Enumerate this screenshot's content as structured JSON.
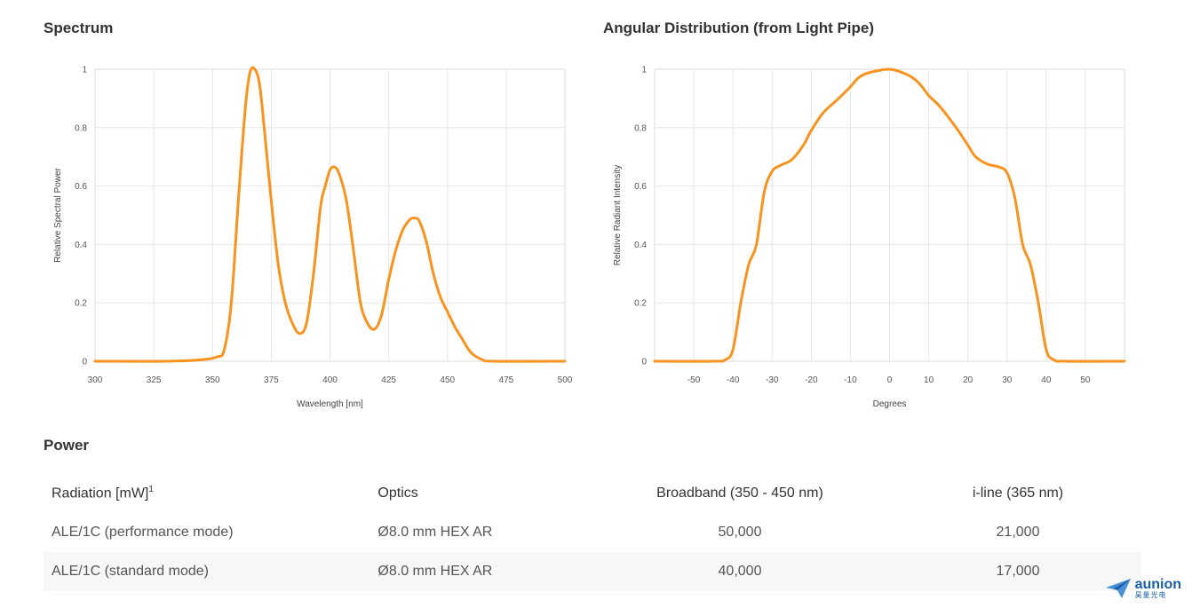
{
  "sections": {
    "spectrum_title": "Spectrum",
    "angular_title": "Angular Distribution (from Light Pipe)",
    "power_title": "Power"
  },
  "chart_data": [
    {
      "type": "line",
      "xlabel": "Wavelength [nm]",
      "ylabel": "Relative Spectral Power",
      "xlim": [
        300,
        500
      ],
      "ylim": [
        0,
        1
      ],
      "x_ticks": [
        300,
        325,
        350,
        375,
        400,
        425,
        450,
        475,
        500
      ],
      "y_ticks": [
        0,
        0.2,
        0.4,
        0.6,
        0.8,
        1
      ],
      "y_tick_labels": [
        "0",
        "0.2",
        "0.4",
        "0.6",
        "0.8",
        "1"
      ],
      "grid": true,
      "color": "#f7931e",
      "series": [
        {
          "x": [
            300,
            330,
            345,
            352,
            355,
            358,
            361,
            364,
            366,
            368,
            370,
            372,
            375,
            378,
            381,
            384,
            387,
            390,
            393,
            396,
            398,
            400,
            402,
            404,
            407,
            410,
            413,
            416,
            419,
            422,
            425,
            428,
            431,
            434,
            436,
            438,
            441,
            444,
            447,
            450,
            453,
            456,
            460,
            465,
            470,
            500
          ],
          "y": [
            0,
            0,
            0.005,
            0.015,
            0.04,
            0.2,
            0.55,
            0.87,
            0.99,
            1.0,
            0.95,
            0.8,
            0.55,
            0.33,
            0.2,
            0.13,
            0.095,
            0.13,
            0.3,
            0.53,
            0.6,
            0.655,
            0.665,
            0.64,
            0.55,
            0.38,
            0.2,
            0.13,
            0.11,
            0.16,
            0.28,
            0.38,
            0.45,
            0.485,
            0.49,
            0.48,
            0.41,
            0.3,
            0.22,
            0.17,
            0.12,
            0.08,
            0.03,
            0.005,
            0,
            0
          ]
        }
      ]
    },
    {
      "type": "line",
      "xlabel": "Degrees",
      "ylabel": "Relative Radiant Intensity",
      "xlim": [
        -60,
        60
      ],
      "ylim": [
        0,
        1
      ],
      "x_ticks": [
        -50,
        -40,
        -30,
        -20,
        -10,
        0,
        10,
        20,
        30,
        40,
        50
      ],
      "y_ticks": [
        0,
        0.2,
        0.4,
        0.6,
        0.8,
        1
      ],
      "y_tick_labels": [
        "0",
        "0.2",
        "0.4",
        "0.6",
        "0.8",
        "1"
      ],
      "grid": true,
      "color": "#f7931e",
      "series": [
        {
          "x": [
            -60,
            -45,
            -42,
            -40,
            -38,
            -36,
            -34,
            -32,
            -30,
            -28,
            -25,
            -22,
            -20,
            -17,
            -13,
            -10,
            -8,
            -6,
            -3,
            0,
            3,
            6,
            8,
            10,
            13,
            17,
            20,
            22,
            25,
            28,
            30,
            32,
            34,
            36,
            38,
            40,
            42,
            45,
            60
          ],
          "y": [
            0,
            0,
            0.005,
            0.04,
            0.2,
            0.33,
            0.4,
            0.58,
            0.65,
            0.67,
            0.69,
            0.74,
            0.79,
            0.85,
            0.9,
            0.94,
            0.97,
            0.985,
            0.995,
            1.0,
            0.99,
            0.97,
            0.945,
            0.91,
            0.87,
            0.8,
            0.74,
            0.7,
            0.675,
            0.665,
            0.645,
            0.56,
            0.4,
            0.33,
            0.2,
            0.04,
            0.005,
            0,
            0
          ]
        }
      ]
    }
  ],
  "table": {
    "headers": [
      "Radiation [mW]",
      "Optics",
      "Broadband (350 - 450 nm)",
      "i-line (365 nm)"
    ],
    "header_footnote": "1",
    "rows": [
      [
        "ALE/1C (performance mode)",
        "Ø8.0 mm HEX AR",
        "50,000",
        "21,000"
      ],
      [
        "ALE/1C (standard mode)",
        "Ø8.0 mm HEX AR",
        "40,000",
        "17,000"
      ]
    ]
  },
  "logo": {
    "name": "aunion",
    "subtitle": "昊量光电",
    "icon": "paper-plane-icon",
    "color": "#1a5fa8"
  }
}
